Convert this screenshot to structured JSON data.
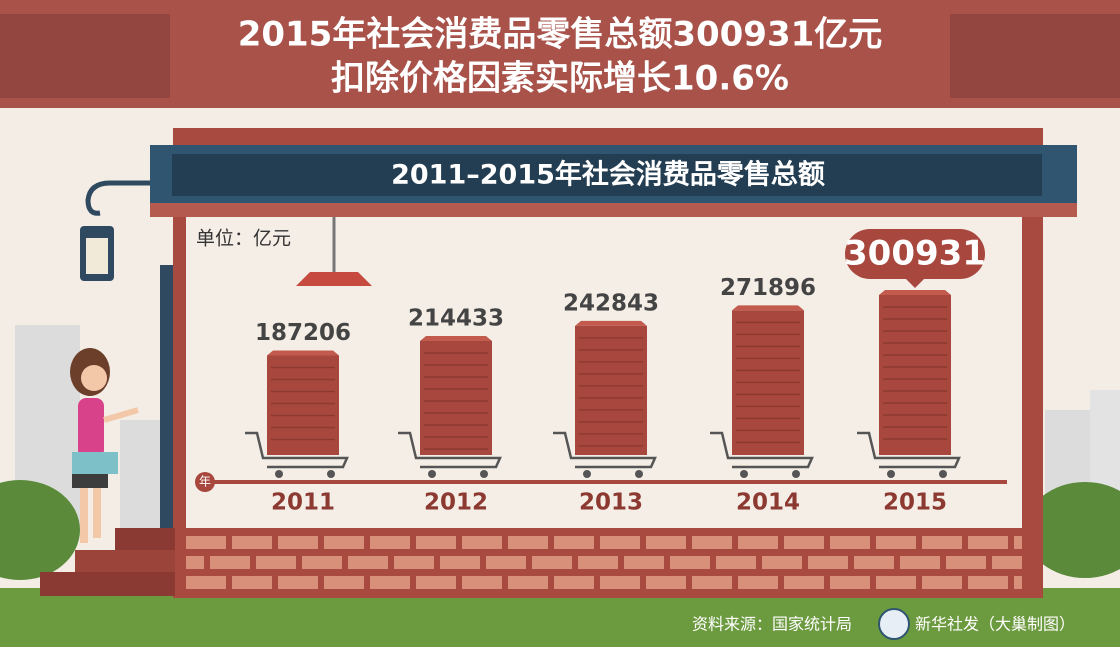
{
  "chart_data": {
    "type": "bar",
    "title": "2015年社会消费品零售总额300931亿元",
    "subtitle": "扣除价格因素实际增长10.6%",
    "header": "2011–2015年社会消费品零售总额",
    "unit_label": "单位：亿元",
    "xlabel": "年",
    "categories": [
      "2011",
      "2012",
      "2013",
      "2014",
      "2015"
    ],
    "values": [
      187206,
      214433,
      242843,
      271896,
      300931
    ],
    "color": "#a8473d",
    "source": "资料来源：国家统计局",
    "credit": "新华社发（大巢制图）"
  }
}
